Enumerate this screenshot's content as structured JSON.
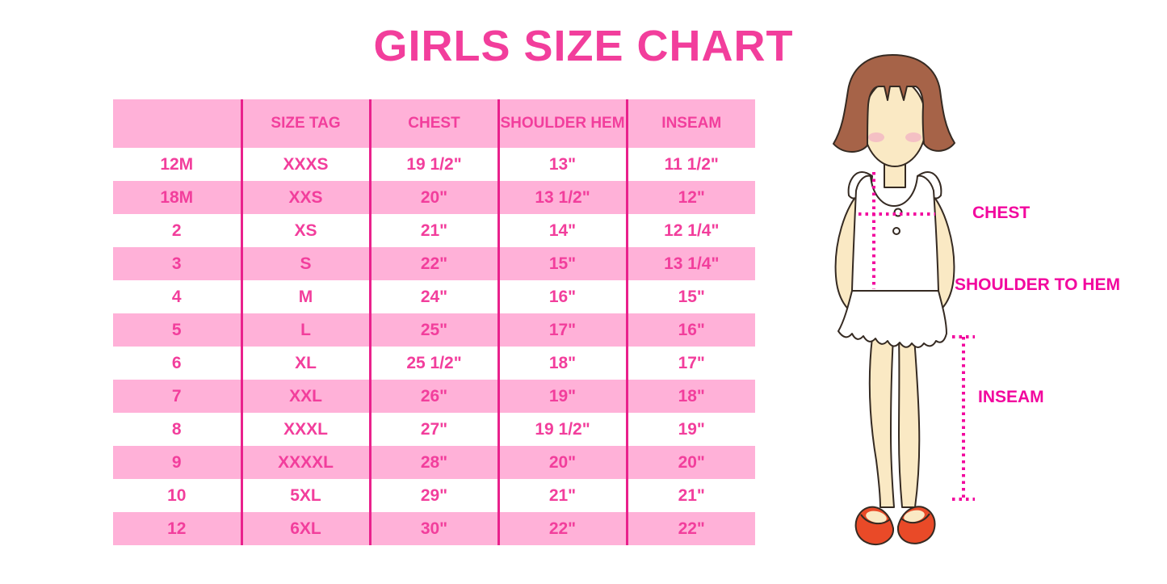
{
  "page": {
    "title": "GIRLS SIZE CHART"
  },
  "table": {
    "headers": [
      "",
      "SIZE TAG",
      "CHEST",
      "SHOULDER HEM",
      "INSEAM"
    ],
    "rows": [
      [
        "12M",
        "XXXS",
        "19 1/2\"",
        "13\"",
        "11 1/2\""
      ],
      [
        "18M",
        "XXS",
        "20\"",
        "13 1/2\"",
        "12\""
      ],
      [
        "2",
        "XS",
        "21\"",
        "14\"",
        "12 1/4\""
      ],
      [
        "3",
        "S",
        "22\"",
        "15\"",
        "13 1/4\""
      ],
      [
        "4",
        "M",
        "24\"",
        "16\"",
        "15\""
      ],
      [
        "5",
        "L",
        "25\"",
        "17\"",
        "16\""
      ],
      [
        "6",
        "XL",
        "25 1/2\"",
        "18\"",
        "17\""
      ],
      [
        "7",
        "XXL",
        "26\"",
        "19\"",
        "18\""
      ],
      [
        "8",
        "XXXL",
        "27\"",
        "19 1/2\"",
        "19\""
      ],
      [
        "9",
        "XXXXL",
        "28\"",
        "20\"",
        "20\""
      ],
      [
        "10",
        "5XL",
        "29\"",
        "21\"",
        "21\""
      ],
      [
        "12",
        "6XL",
        "30\"",
        "22\"",
        "22\""
      ]
    ]
  },
  "diagram": {
    "labels": {
      "chest": "CHEST",
      "shoulder_to_hem": "SHOULDER TO HEM",
      "inseam": "INSEAM"
    }
  },
  "colors": {
    "accent": "#F23E9C",
    "row_pink": "#FFB1D8",
    "divider": "#E9218C",
    "dotted": "#F2079E",
    "hair": "#A66348",
    "skin": "#FAE9C4",
    "blush": "#F4B9C4",
    "shoe": "#E94A28",
    "outline": "#352A22"
  }
}
